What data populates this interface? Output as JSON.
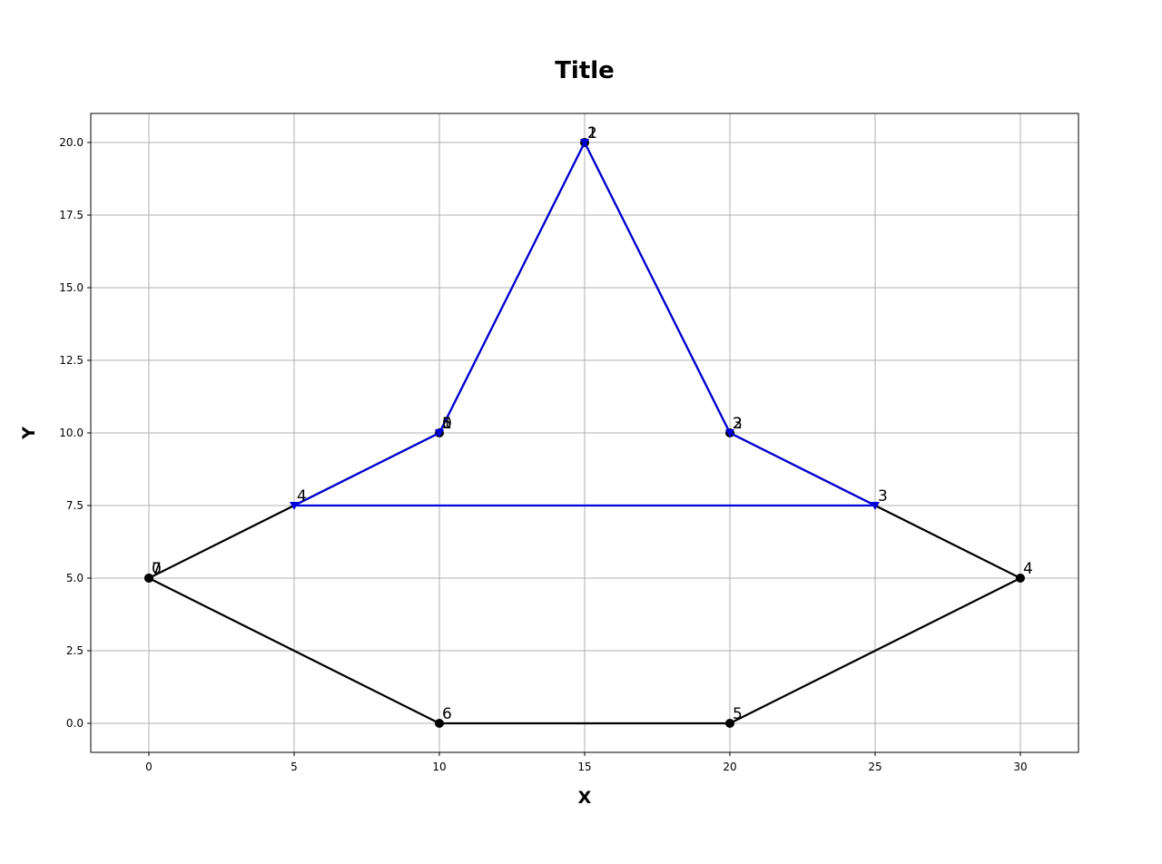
{
  "chart_data": {
    "type": "line",
    "title": "Title",
    "xlabel": "X",
    "ylabel": "Y",
    "xlim": [
      -2,
      32
    ],
    "ylim": [
      -1,
      21
    ],
    "xticks": [
      0,
      5,
      10,
      15,
      20,
      25,
      30
    ],
    "xtick_labels": [
      "0",
      "5",
      "10",
      "15",
      "20",
      "25",
      "30"
    ],
    "yticks": [
      0,
      2.5,
      5,
      7.5,
      10,
      12.5,
      15,
      17.5,
      20
    ],
    "ytick_labels": [
      "0.0",
      "2.5",
      "5.0",
      "7.5",
      "10.0",
      "12.5",
      "15.0",
      "17.5",
      "20.0"
    ],
    "grid": true,
    "series": [
      {
        "color": "#000000",
        "marker": "circle",
        "closed": true,
        "points": [
          {
            "x": 0,
            "y": 5,
            "label": "0"
          },
          {
            "x": 10,
            "y": 10,
            "label": "1"
          },
          {
            "x": 15,
            "y": 20,
            "label": "2"
          },
          {
            "x": 20,
            "y": 10,
            "label": "3"
          },
          {
            "x": 30,
            "y": 5,
            "label": "4"
          },
          {
            "x": 20,
            "y": 0,
            "label": "5"
          },
          {
            "x": 10,
            "y": 0,
            "label": "6"
          },
          {
            "x": 0,
            "y": 5,
            "label": "7"
          }
        ]
      },
      {
        "color": "#0000dd",
        "marker": "triangle-down",
        "closed": true,
        "points": [
          {
            "x": 10,
            "y": 10,
            "label": "0"
          },
          {
            "x": 15,
            "y": 20,
            "label": "1"
          },
          {
            "x": 20,
            "y": 10,
            "label": "2"
          },
          {
            "x": 25,
            "y": 7.5,
            "label": "3"
          },
          {
            "x": 5,
            "y": 7.5,
            "label": "4"
          },
          {
            "x": 10,
            "y": 10,
            "label": "5"
          }
        ]
      }
    ]
  }
}
